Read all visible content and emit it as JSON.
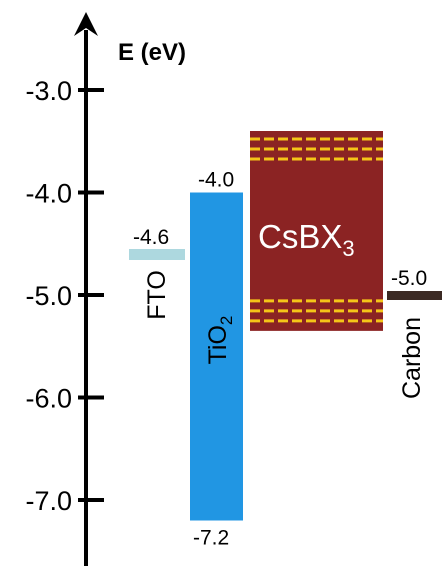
{
  "axis": {
    "label": "E (eV)",
    "ticks": [
      {
        "value": -3.0,
        "label": "-3.0"
      },
      {
        "value": -4.0,
        "label": "-4.0"
      },
      {
        "value": -5.0,
        "label": "-5.0"
      },
      {
        "value": -6.0,
        "label": "-6.0"
      },
      {
        "value": -7.0,
        "label": "-7.0"
      }
    ]
  },
  "materials": {
    "fto": {
      "name": "FTO",
      "level": -4.6,
      "level_label": "-4.6",
      "color": "#add8df"
    },
    "tio2": {
      "name_main": "TiO",
      "name_sub": "2",
      "top": -4.0,
      "bottom": -7.2,
      "top_label": "-4.0",
      "bottom_label": "-7.2",
      "color": "#2196e3"
    },
    "csbx3": {
      "name_main": "CsBX",
      "name_sub": "3",
      "top": -3.4,
      "bottom": -5.35,
      "color": "#8b2323",
      "dash_color": "#f5c518"
    },
    "carbon": {
      "name": "Carbon",
      "level": -5.0,
      "level_label": "-5.0",
      "color": "#3b2a24"
    }
  }
}
